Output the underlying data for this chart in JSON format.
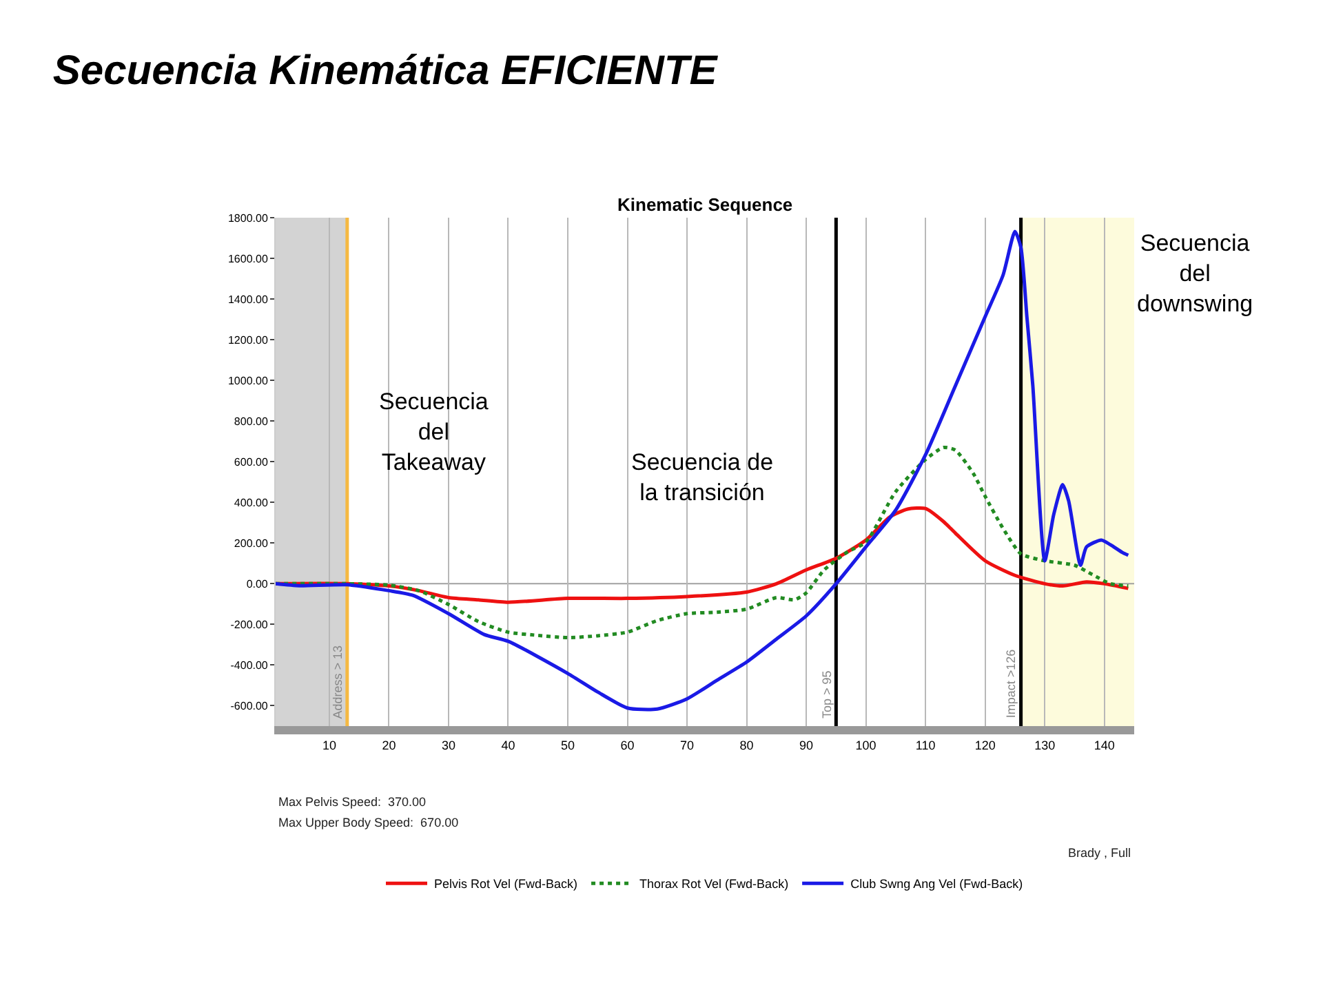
{
  "chart_data": {
    "type": "line",
    "title": "Secuencia Kinemática EFICIENTE",
    "subtitle": "Kinematic Sequence",
    "xlim": [
      1,
      145
    ],
    "xticks": [
      10,
      20,
      30,
      40,
      50,
      60,
      70,
      80,
      90,
      100,
      110,
      120,
      130,
      140
    ],
    "ylim": [
      -700,
      1800
    ],
    "yticks": [
      {
        "value": -600,
        "label": "-600.00"
      },
      {
        "value": -400,
        "label": "-400.00"
      },
      {
        "value": -200,
        "label": "-200.00"
      },
      {
        "value": 0,
        "label": "0.00"
      },
      {
        "value": 200,
        "label": "200.00"
      },
      {
        "value": 400,
        "label": "400.00"
      },
      {
        "value": 600,
        "label": "600.00"
      },
      {
        "value": 800,
        "label": "800.00"
      },
      {
        "value": 1000,
        "label": "1000.00"
      },
      {
        "value": 1200,
        "label": "1200.00"
      },
      {
        "value": 1400,
        "label": "1400.00"
      },
      {
        "value": 1600,
        "label": "1600.00"
      },
      {
        "value": 1800,
        "label": "1800.00"
      }
    ],
    "grid": "x",
    "legend": "bottom",
    "marker": "none",
    "series": [
      {
        "name": "Pelvis Rot Vel (Fwd-Back)",
        "color": "#ee1111",
        "line_style": "solid",
        "x": [
          1,
          13,
          20,
          25,
          30,
          35,
          40,
          50,
          60,
          70,
          80,
          85,
          90,
          95,
          100,
          104,
          107,
          110,
          113,
          115,
          120,
          125,
          130,
          133,
          137,
          140,
          144
        ],
        "values": [
          0,
          0,
          -11,
          -34,
          -68,
          -79,
          -91,
          -72,
          -72,
          -63,
          -41,
          0,
          68,
          125,
          215,
          328,
          367,
          370,
          306,
          249,
          113,
          41,
          0,
          -11,
          9,
          0,
          -23
        ]
      },
      {
        "name": "Thorax Rot Vel (Fwd-Back)",
        "color": "#228b22",
        "line_style": "dotted",
        "x": [
          1,
          13,
          20,
          25,
          30,
          35,
          40,
          45,
          50,
          55,
          60,
          65,
          70,
          75,
          80,
          85,
          88,
          90,
          93,
          97,
          100,
          105,
          110,
          113,
          115,
          118,
          120,
          123,
          126,
          130,
          135,
          138,
          141,
          144
        ],
        "values": [
          0,
          0,
          -7,
          -34,
          -102,
          -186,
          -238,
          -254,
          -265,
          -256,
          -238,
          -181,
          -147,
          -140,
          -125,
          -68,
          -79,
          -45,
          68,
          158,
          204,
          453,
          611,
          670,
          657,
          543,
          430,
          272,
          147,
          113,
          91,
          45,
          0,
          -11
        ]
      },
      {
        "name": "Club Swng Ang Vel (Fwd-Back)",
        "color": "#1a1ae6",
        "line_style": "solid",
        "x": [
          1,
          5,
          13,
          20,
          24,
          30,
          36,
          40,
          50,
          55,
          60,
          65,
          70,
          75,
          80,
          85,
          90,
          95,
          100,
          105,
          110,
          115,
          120,
          123,
          125,
          126,
          127,
          128,
          130,
          131.5,
          133,
          134,
          136,
          137,
          139.5,
          141,
          143,
          144
        ],
        "values": [
          0,
          -10,
          -5,
          -34,
          -57,
          -147,
          -250,
          -283,
          -441,
          -532,
          -611,
          -616,
          -566,
          -475,
          -385,
          -272,
          -158,
          0,
          181,
          362,
          634,
          973,
          1313,
          1517,
          1732,
          1653,
          1313,
          973,
          113,
          340,
          487,
          408,
          91,
          181,
          215,
          192,
          154,
          140
        ]
      }
    ],
    "bands": [
      {
        "axis": "x",
        "from": 1,
        "to": 13,
        "color": "#d3d3d3"
      },
      {
        "axis": "x",
        "from": 126,
        "to": 145,
        "color": "#fdfbdc"
      }
    ],
    "ref_lines": [
      {
        "axis": "y",
        "value": 0,
        "color": "#a0a0a0"
      },
      {
        "axis": "x",
        "value": 13,
        "label": "Address > 13",
        "color": "#f5b942"
      },
      {
        "axis": "x",
        "value": 95,
        "label": "Top > 95",
        "color": "#000000"
      },
      {
        "axis": "x",
        "value": 126,
        "label": "Impact >126",
        "color": "#000000"
      }
    ],
    "annotations": [
      "Secuencia\ndel\nTakeaway",
      "Secuencia de\nla transición",
      "Secuencia\ndel\ndownswing",
      "Max Pelvis Speed:  370.00",
      "Max Upper Body Speed:  670.00",
      "Brady , Full"
    ]
  }
}
